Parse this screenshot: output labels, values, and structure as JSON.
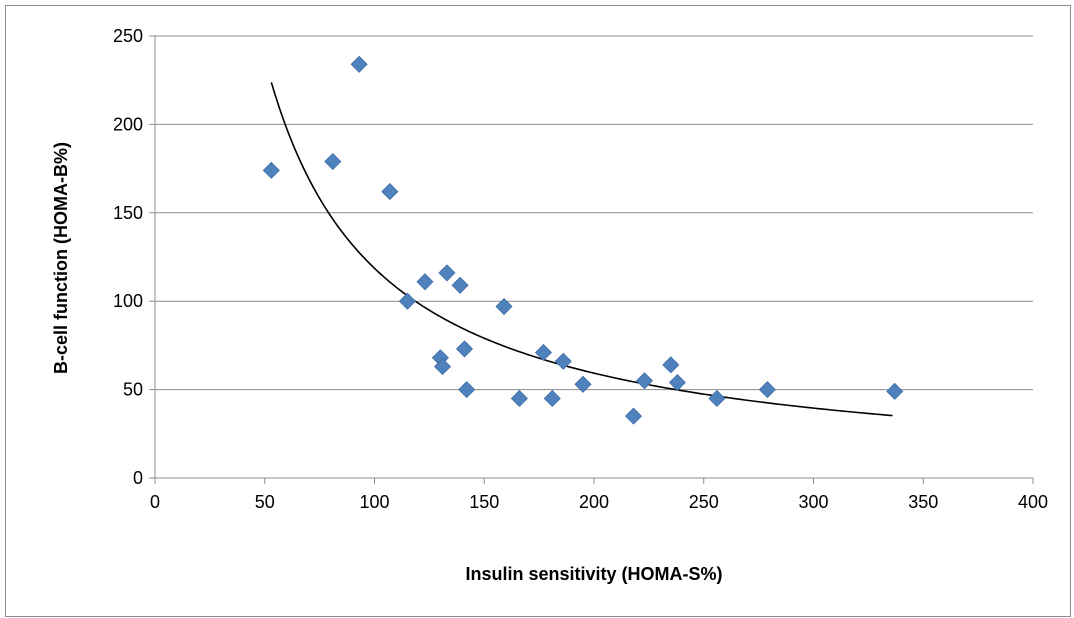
{
  "chart_data": {
    "type": "scatter",
    "title": "",
    "xlabel": "Insulin sensitivity (HOMA-S%)",
    "ylabel": "B-cell function (HOMA-B%)",
    "xlim": [
      0,
      400
    ],
    "ylim": [
      0,
      250
    ],
    "xticks": [
      0,
      50,
      100,
      150,
      200,
      250,
      300,
      350,
      400
    ],
    "yticks": [
      0,
      50,
      100,
      150,
      200,
      250
    ],
    "grid": "horizontal",
    "legend": "none",
    "marker_color": "#4f81bd",
    "trendline_color": "#000000",
    "points": [
      {
        "x": 53,
        "y": 174
      },
      {
        "x": 81,
        "y": 179
      },
      {
        "x": 93,
        "y": 234
      },
      {
        "x": 107,
        "y": 162
      },
      {
        "x": 115,
        "y": 100
      },
      {
        "x": 123,
        "y": 111
      },
      {
        "x": 130,
        "y": 68
      },
      {
        "x": 131,
        "y": 63
      },
      {
        "x": 133,
        "y": 116
      },
      {
        "x": 139,
        "y": 109
      },
      {
        "x": 141,
        "y": 73
      },
      {
        "x": 142,
        "y": 50
      },
      {
        "x": 159,
        "y": 97
      },
      {
        "x": 166,
        "y": 45
      },
      {
        "x": 177,
        "y": 71
      },
      {
        "x": 181,
        "y": 45
      },
      {
        "x": 186,
        "y": 66
      },
      {
        "x": 195,
        "y": 53
      },
      {
        "x": 218,
        "y": 35
      },
      {
        "x": 223,
        "y": 55
      },
      {
        "x": 235,
        "y": 64
      },
      {
        "x": 238,
        "y": 54
      },
      {
        "x": 256,
        "y": 45
      },
      {
        "x": 279,
        "y": 50
      },
      {
        "x": 337,
        "y": 49
      }
    ],
    "trendline": {
      "type": "power",
      "x_range": [
        53,
        336
      ],
      "coefficient": 11859,
      "exponent": -1.0
    }
  }
}
